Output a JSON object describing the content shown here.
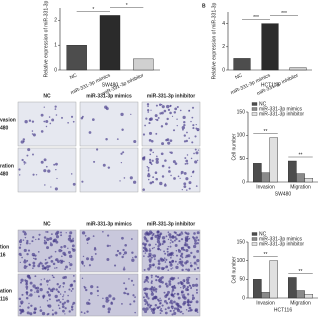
{
  "chart_data": [
    {
      "type": "bar",
      "ylabel": "Relative expression of miR-331-3p",
      "xlabel": "SW480",
      "categories": [
        "NC",
        "miR-331-3p mimics",
        "miR-331-3p inhibitor"
      ],
      "values": [
        1.0,
        2.2,
        0.45
      ],
      "colors": [
        "#4d4d4d",
        "#2b2b2b",
        "#d0d0d0"
      ],
      "ylim": [
        0,
        2.5
      ],
      "yticks": [
        0,
        1,
        2
      ],
      "annotations": [
        "*",
        "*"
      ]
    },
    {
      "type": "bar",
      "panel_label": "B",
      "ylabel": "Relative expression of miR-331-3p",
      "xlabel": "HCT116",
      "categories": [
        "NC",
        "miR-331-3p mimics",
        "miR-331-3p inhibitor"
      ],
      "values": [
        1.0,
        4.0,
        0.2
      ],
      "colors": [
        "#4d4d4d",
        "#2b2b2b",
        "#d0d0d0"
      ],
      "ylim": [
        0,
        5
      ],
      "yticks": [
        0,
        2,
        4
      ],
      "annotations": [
        "***",
        "***"
      ]
    },
    {
      "type": "grouped-bar",
      "ylabel": "Cell number",
      "xlabel": "SW480",
      "categories": [
        "Invasion",
        "Migration"
      ],
      "series": [
        {
          "name": "NC",
          "color": "#4d4d4d",
          "values": [
            40,
            45
          ]
        },
        {
          "name": "miR-331-3p mimics",
          "color": "#8a8a8a",
          "values": [
            20,
            18
          ]
        },
        {
          "name": "miR-331-3p inhibitor",
          "color": "#e0e0e0",
          "values": [
            95,
            8
          ]
        }
      ],
      "ylim": [
        0,
        150
      ],
      "yticks": [
        0,
        50,
        100,
        150
      ],
      "annotations": [
        "**",
        "**"
      ]
    },
    {
      "type": "grouped-bar",
      "ylabel": "Cell number",
      "xlabel": "HCT116",
      "categories": [
        "Invasion",
        "Migration"
      ],
      "series": [
        {
          "name": "NC",
          "color": "#4d4d4d",
          "values": [
            50,
            55
          ]
        },
        {
          "name": "miR-331-3p mimics",
          "color": "#8a8a8a",
          "values": [
            15,
            20
          ]
        },
        {
          "name": "miR-331-3p inhibitor",
          "color": "#e0e0e0",
          "values": [
            100,
            10
          ]
        }
      ],
      "ylim": [
        0,
        150
      ],
      "yticks": [
        0,
        50,
        100,
        150
      ],
      "annotations": [
        "**",
        "**"
      ]
    }
  ],
  "micrographs": [
    {
      "columns": [
        "NC",
        "miR-331-3p mimics",
        "miR-331-3p inhibitor"
      ],
      "rows": [
        [
          "vasion",
          "480"
        ],
        [
          "ration",
          "480"
        ]
      ]
    },
    {
      "columns": [
        "NC",
        "miR-331-3p mimics",
        "miR-331-3p inhibitor"
      ],
      "rows": [
        [
          "tion",
          "16"
        ],
        [
          "ation",
          "116"
        ]
      ]
    }
  ]
}
